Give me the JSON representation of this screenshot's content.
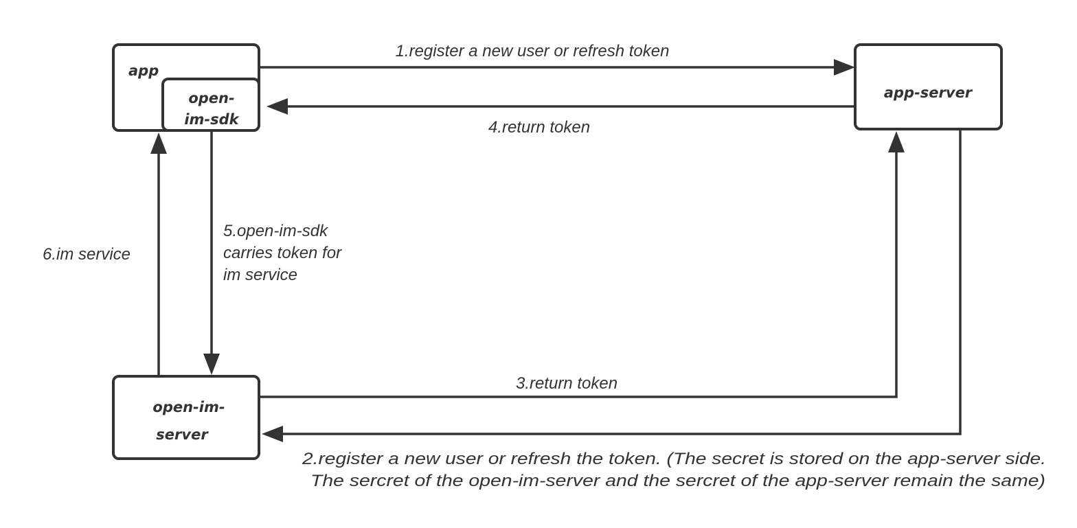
{
  "nodes": {
    "app": "app",
    "sdk": [
      "open-",
      "im-sdk"
    ],
    "app_server": "app-server",
    "im_server": [
      "open-im-",
      "server"
    ]
  },
  "edges": {
    "e1": "1.register a new user or refresh token",
    "e2": [
      "2.register a new user or refresh the token. (The secret is stored on the app-server side.",
      "The sercret of the open-im-server and the sercret of the app-server remain the same)"
    ],
    "e3": "3.return token",
    "e4": "4.return token",
    "e5": [
      "5.open-im-sdk",
      "carries token for",
      "im service"
    ],
    "e6": "6.im service"
  },
  "colors": {
    "stroke": "#333333",
    "background": "#ffffff"
  }
}
